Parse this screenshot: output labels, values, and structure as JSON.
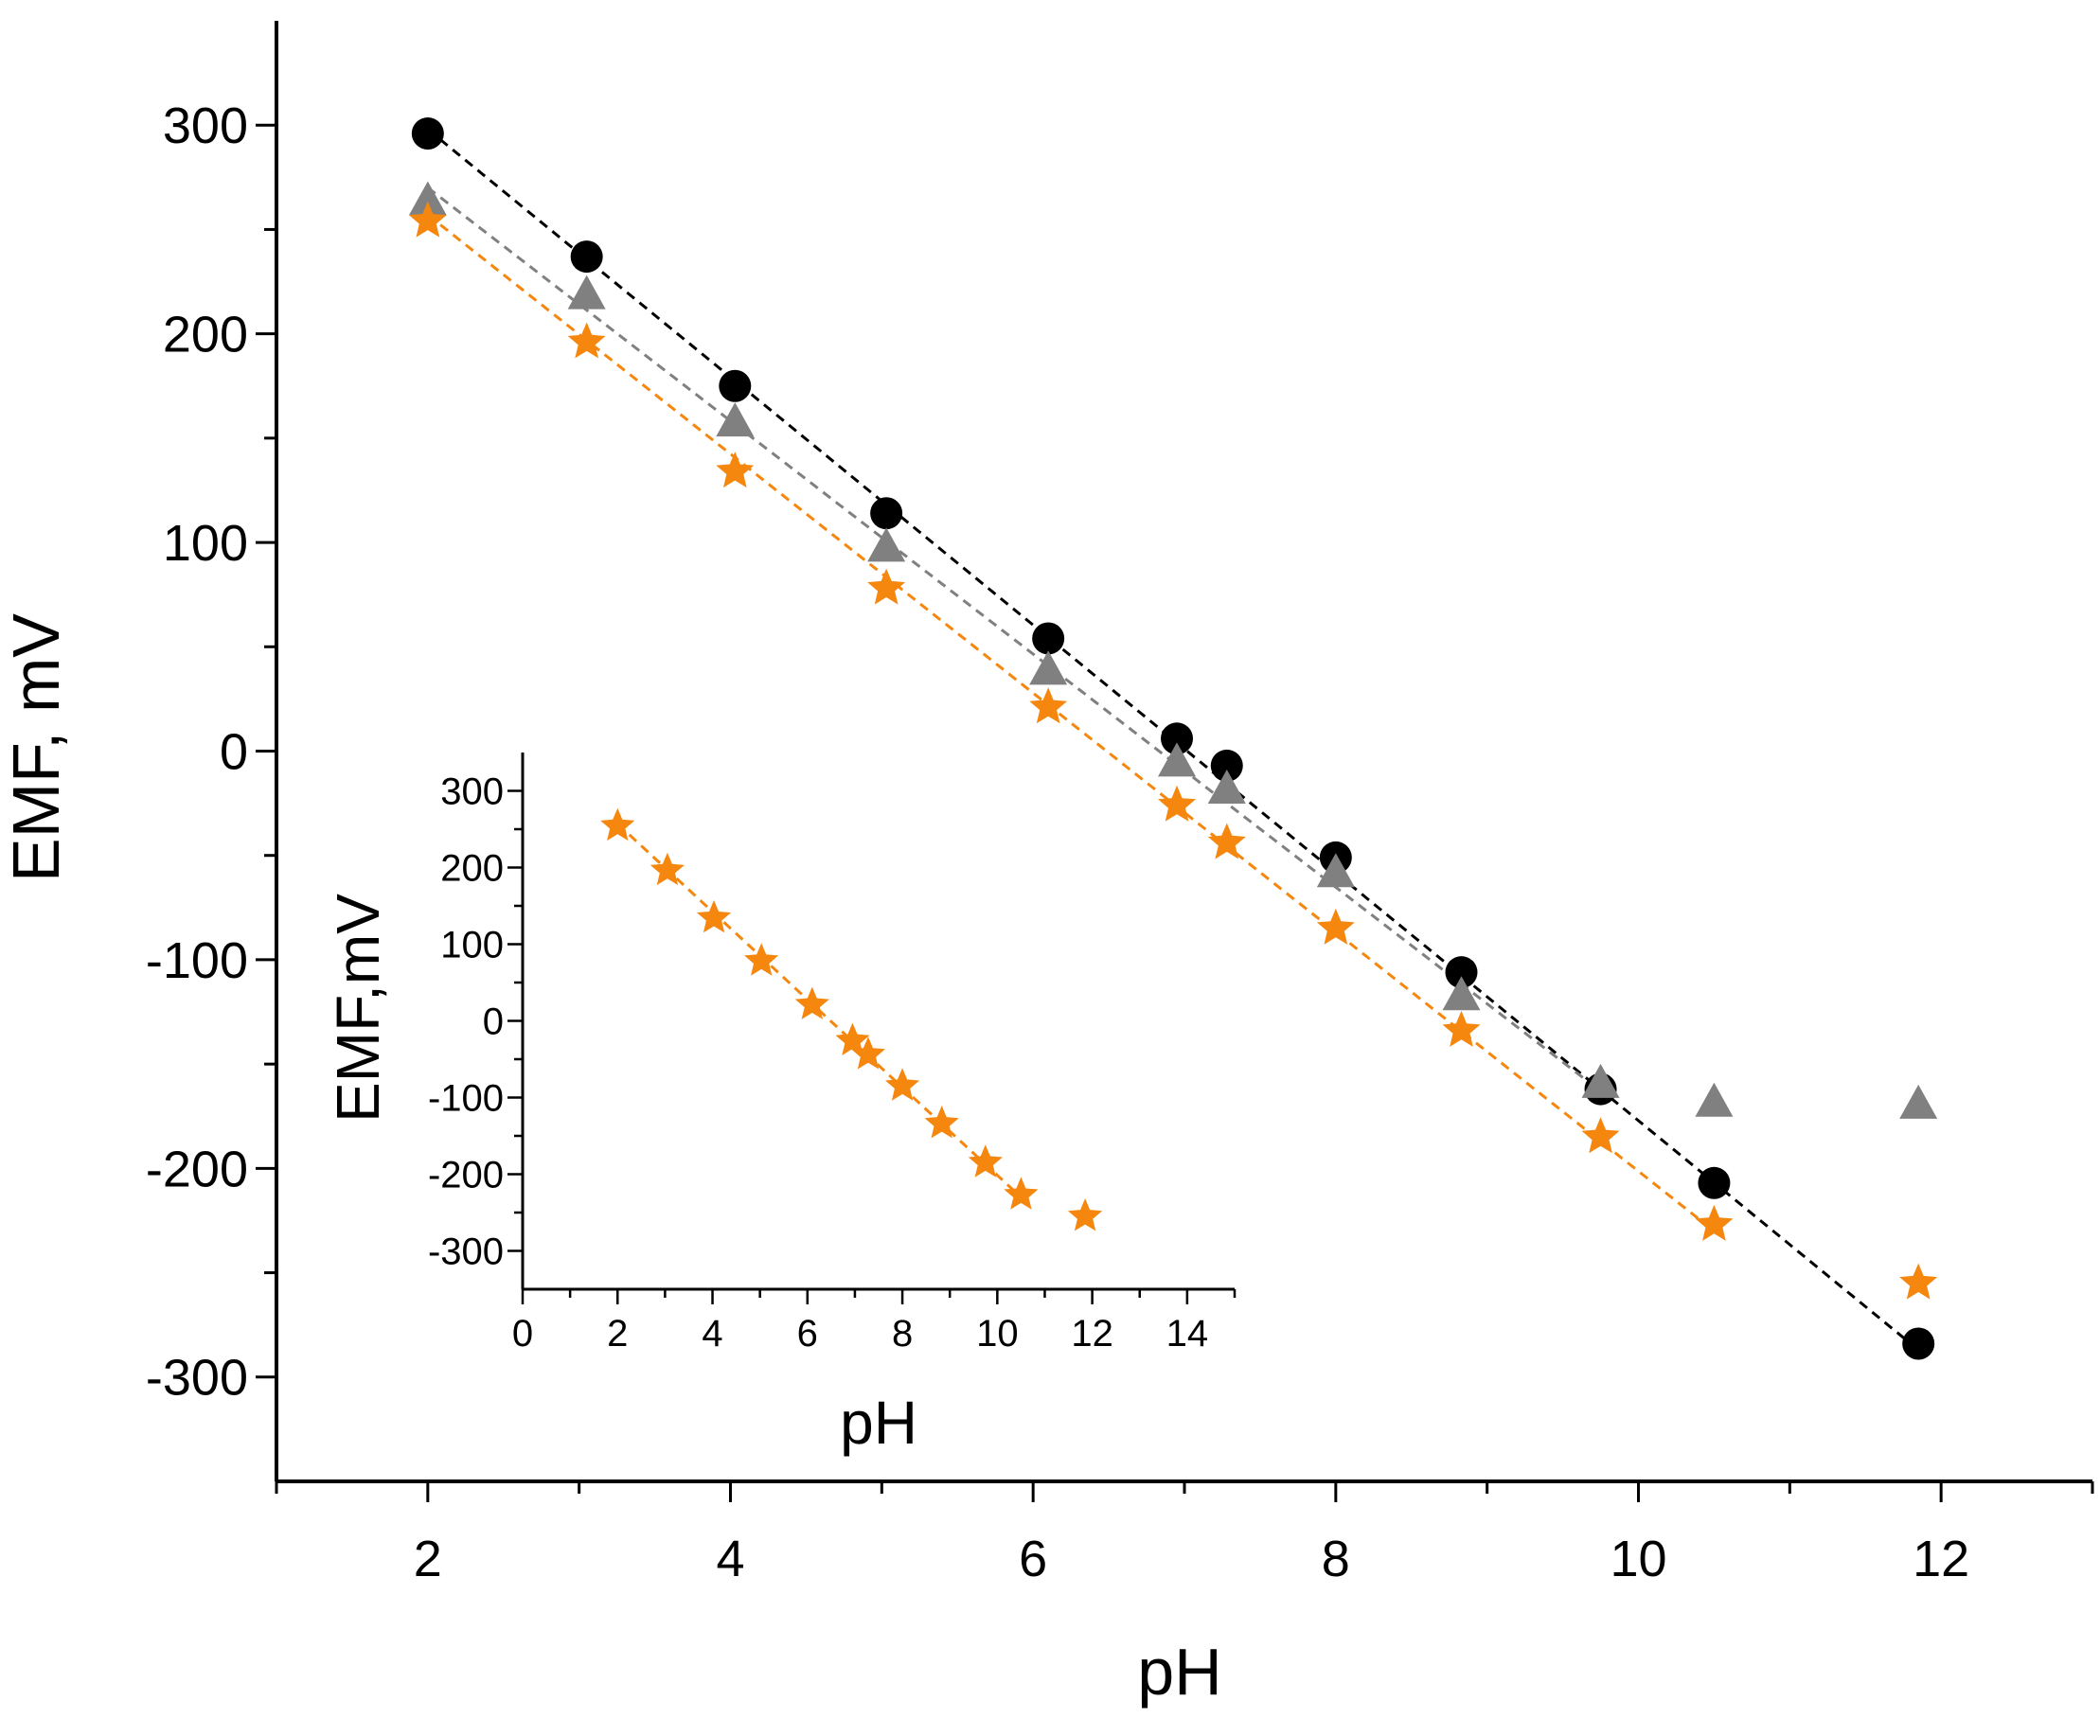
{
  "chart_data": [
    {
      "id": "main",
      "type": "scatter",
      "title": "",
      "xlabel": "pH",
      "ylabel": "EMF, mV",
      "xlim": [
        1,
        13
      ],
      "ylim": [
        -350,
        350
      ],
      "xticks_major": [
        2,
        4,
        6,
        8,
        10,
        12
      ],
      "xticks_minor": [
        1,
        3,
        5,
        7,
        9,
        11,
        13
      ],
      "yticks_major": [
        -300,
        -200,
        -100,
        0,
        100,
        200,
        300
      ],
      "yticks_minor": [
        -250,
        -150,
        -50,
        50,
        150,
        250
      ],
      "tick_labels_x": [
        "2",
        "4",
        "6",
        "8",
        "10",
        "12"
      ],
      "tick_labels_y": [
        "-300",
        "-200",
        "-100",
        "0",
        "100",
        "200",
        "300"
      ],
      "grid": false,
      "series": [
        {
          "name": "circle series",
          "marker": "circle",
          "color": "#000000",
          "x": [
            2.0,
            3.05,
            4.03,
            5.03,
            6.1,
            6.95,
            7.28,
            8.0,
            8.83,
            9.75,
            10.5,
            11.85
          ],
          "y": [
            296,
            237,
            175,
            114,
            54,
            6,
            -7,
            -51,
            -106,
            -162,
            -207,
            -284
          ],
          "fit": {
            "x": [
              2.0,
              11.85
            ],
            "y": [
              298,
              -287
            ],
            "color": "#000000"
          }
        },
        {
          "name": "triangle series",
          "marker": "triangle",
          "color": "#808080",
          "x": [
            2.0,
            3.05,
            4.03,
            5.03,
            6.1,
            6.95,
            7.28,
            8.0,
            8.83,
            9.75,
            10.5,
            11.85
          ],
          "y": [
            263,
            218,
            157,
            97,
            38,
            -6,
            -19,
            -59,
            -118,
            -160,
            -169,
            -170
          ],
          "fit": {
            "x": [
              2.0,
              9.75
            ],
            "y": [
              270,
              -163
            ],
            "color": "#808080"
          }
        },
        {
          "name": "star series",
          "marker": "star",
          "color": "#F5870F",
          "x": [
            2.0,
            3.05,
            4.03,
            5.03,
            6.1,
            6.95,
            7.28,
            8.0,
            8.83,
            9.75,
            10.5,
            11.85
          ],
          "y": [
            254,
            196,
            134,
            78,
            21,
            -26,
            -44,
            -85,
            -134,
            -185,
            -227,
            -255
          ],
          "fit": {
            "x": [
              2.0,
              10.5
            ],
            "y": [
              257,
              -230
            ],
            "color": "#F5870F"
          }
        }
      ]
    },
    {
      "id": "inset",
      "type": "scatter",
      "title": "",
      "xlabel": "pH",
      "ylabel": "EMF,mV",
      "xlim": [
        0,
        15
      ],
      "ylim": [
        -350,
        350
      ],
      "xticks_major": [
        0,
        2,
        4,
        6,
        8,
        10,
        12,
        14
      ],
      "xticks_minor": [
        1,
        3,
        5,
        7,
        9,
        11,
        13,
        15
      ],
      "yticks_major": [
        -300,
        -200,
        -100,
        0,
        100,
        200,
        300
      ],
      "yticks_minor": [
        -250,
        -150,
        -50,
        50,
        150,
        250
      ],
      "tick_labels_x": [
        "0",
        "2",
        "4",
        "6",
        "8",
        "10",
        "12",
        "14"
      ],
      "tick_labels_y": [
        "-300",
        "-200",
        "-100",
        "0",
        "100",
        "200",
        "300"
      ],
      "grid": false,
      "series": [
        {
          "name": "star series",
          "marker": "star",
          "color": "#F5870F",
          "x": [
            2.0,
            3.05,
            4.03,
            5.03,
            6.1,
            6.95,
            7.28,
            8.0,
            8.83,
            9.75,
            10.5,
            11.85
          ],
          "y": [
            254,
            196,
            134,
            78,
            21,
            -26,
            -44,
            -85,
            -134,
            -185,
            -227,
            -255
          ],
          "fit": {
            "x": [
              2.0,
              10.5
            ],
            "y": [
              257,
              -230
            ],
            "color": "#F5870F"
          }
        }
      ]
    }
  ]
}
